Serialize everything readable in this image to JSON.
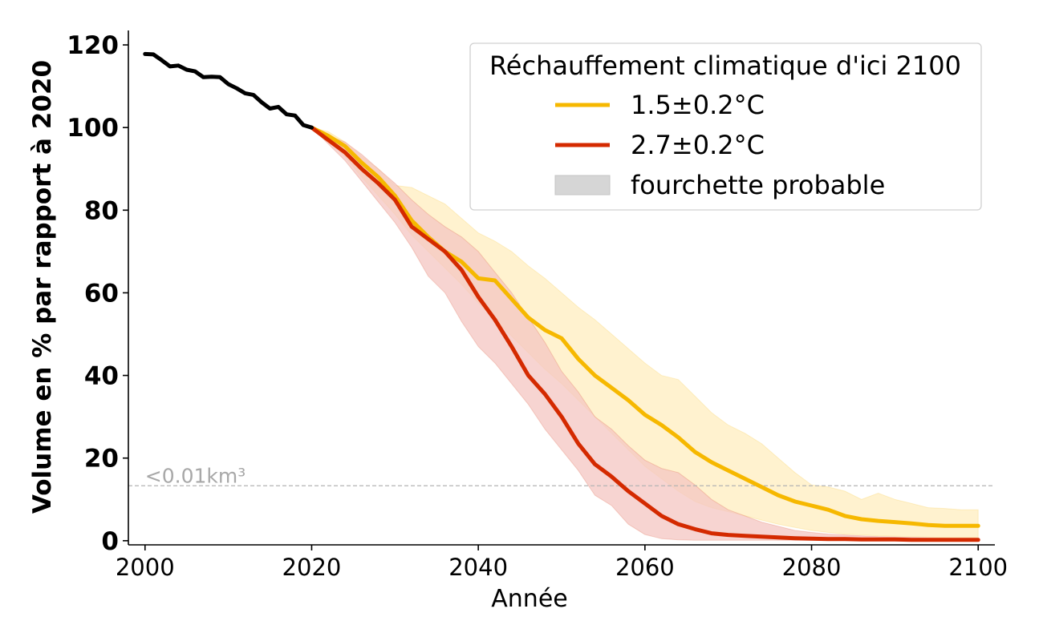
{
  "chart_data": {
    "type": "line",
    "xlabel": "Année",
    "ylabel": "Volume en % par rapport à 2020",
    "xlim": [
      1998,
      2102
    ],
    "ylim": [
      -1,
      123.5
    ],
    "xticks": [
      2000,
      2020,
      2040,
      2060,
      2080,
      2100
    ],
    "yticks": [
      0,
      20,
      40,
      60,
      80,
      100,
      120
    ],
    "grid": false,
    "historical": {
      "color": "#000000",
      "x": [
        2000,
        2001,
        2002,
        2003,
        2004,
        2005,
        2006,
        2007,
        2008,
        2009,
        2010,
        2011,
        2012,
        2013,
        2014,
        2015,
        2016,
        2017,
        2018,
        2019,
        2020
      ],
      "y": [
        117.8,
        117.7,
        116.3,
        114.8,
        115.0,
        114.0,
        113.6,
        112.2,
        112.3,
        112.2,
        110.5,
        109.5,
        108.3,
        107.9,
        106.1,
        104.6,
        105.0,
        103.2,
        102.9,
        100.6,
        100.0
      ]
    },
    "series": [
      {
        "name": "1.5±0.2°C",
        "color": "#f6b800",
        "band_color": "#ffedbf",
        "x": [
          2020,
          2022,
          2024,
          2026,
          2028,
          2030,
          2032,
          2034,
          2036,
          2038,
          2040,
          2042,
          2044,
          2046,
          2048,
          2050,
          2052,
          2054,
          2056,
          2058,
          2060,
          2062,
          2064,
          2066,
          2068,
          2070,
          2072,
          2074,
          2076,
          2078,
          2080,
          2082,
          2084,
          2086,
          2088,
          2090,
          2092,
          2094,
          2096,
          2098,
          2100
        ],
        "y": [
          100,
          98.0,
          95.5,
          91.5,
          88.0,
          83.5,
          77.5,
          73.5,
          70.0,
          67.5,
          63.5,
          63.0,
          58.5,
          54.0,
          51.0,
          49.0,
          44.0,
          40.0,
          37.0,
          34.0,
          30.5,
          28.0,
          25.0,
          21.5,
          19.0,
          17.0,
          15.0,
          13.0,
          11.0,
          9.5,
          8.5,
          7.5,
          6.0,
          5.2,
          4.8,
          4.5,
          4.2,
          3.8,
          3.6,
          3.6,
          3.6
        ],
        "lower": [
          100,
          97.0,
          93.0,
          88.0,
          83.5,
          79.0,
          74.0,
          70.0,
          66.0,
          62.0,
          57.5,
          53.5,
          49.5,
          45.5,
          41.5,
          38.0,
          34.0,
          30.0,
          26.0,
          22.0,
          18.0,
          15.0,
          12.0,
          9.5,
          8.0,
          7.0,
          6.0,
          5.0,
          4.0,
          3.2,
          2.5,
          2.0,
          1.6,
          1.4,
          1.2,
          1.1,
          1.0,
          0.9,
          0.8,
          0.8,
          0.8
        ],
        "upper": [
          100,
          99.0,
          96.5,
          93.0,
          90.0,
          86.0,
          85.5,
          83.5,
          81.5,
          78.0,
          74.5,
          72.5,
          70.0,
          66.5,
          63.5,
          60.0,
          56.5,
          53.5,
          50.0,
          46.5,
          43.0,
          40.0,
          39.0,
          35.0,
          31.0,
          28.0,
          26.0,
          23.5,
          20.0,
          16.5,
          13.5,
          13.0,
          12.0,
          10.0,
          11.5,
          10.0,
          9.0,
          8.0,
          7.8,
          7.5,
          7.5
        ]
      },
      {
        "name": "2.7±0.2°C",
        "color": "#d42a00",
        "band_color": "#f4c5c1",
        "x": [
          2020,
          2022,
          2024,
          2026,
          2028,
          2030,
          2032,
          2034,
          2036,
          2038,
          2040,
          2042,
          2044,
          2046,
          2048,
          2050,
          2052,
          2054,
          2056,
          2058,
          2060,
          2062,
          2064,
          2066,
          2068,
          2070,
          2072,
          2074,
          2076,
          2078,
          2080,
          2082,
          2084,
          2086,
          2088,
          2090,
          2092,
          2094,
          2096,
          2098,
          2100
        ],
        "y": [
          100,
          97.0,
          94.0,
          90.0,
          86.5,
          82.5,
          76.0,
          73.0,
          70.0,
          65.5,
          59.0,
          53.5,
          47.0,
          40.0,
          35.5,
          30.0,
          23.5,
          18.5,
          15.5,
          12.0,
          9.0,
          6.0,
          4.0,
          2.8,
          1.8,
          1.4,
          1.2,
          1.0,
          0.8,
          0.6,
          0.5,
          0.4,
          0.4,
          0.3,
          0.3,
          0.3,
          0.2,
          0.2,
          0.2,
          0.2,
          0.2
        ],
        "lower": [
          100,
          96.0,
          92.0,
          87.0,
          82.0,
          77.0,
          71.0,
          64.0,
          60.0,
          53.0,
          47.0,
          43.0,
          38.0,
          33.0,
          27.0,
          22.0,
          17.0,
          11.0,
          8.5,
          4.0,
          1.5,
          0.5,
          0.2,
          0.1,
          0.1,
          0.1,
          0.1,
          0.1,
          0.1,
          0.1,
          0.1,
          0.1,
          0.1,
          0.1,
          0.1,
          0.1,
          0.1,
          0.1,
          0.1,
          0.1,
          0.1
        ],
        "upper": [
          100,
          98.0,
          96.5,
          93.5,
          90.0,
          86.5,
          82.5,
          79.0,
          76.0,
          73.5,
          70.0,
          65.0,
          60.0,
          54.0,
          48.0,
          41.0,
          36.0,
          30.0,
          27.0,
          23.0,
          19.5,
          17.5,
          16.5,
          13.5,
          10.0,
          7.5,
          6.0,
          4.5,
          3.5,
          2.5,
          2.0,
          1.6,
          1.4,
          1.2,
          1.0,
          0.9,
          0.8,
          0.7,
          0.6,
          0.5,
          0.5
        ]
      }
    ],
    "threshold": {
      "y": 13.3,
      "label": "<0.01km³",
      "color": "#b4b4b4"
    },
    "legend": {
      "title": "Réchauffement climatique d'ici 2100",
      "placement": "top-right",
      "entries": [
        "1.5±0.2°C",
        "2.7±0.2°C",
        "fourchette probable"
      ],
      "range_swatch_color": "#d6d6d6"
    }
  }
}
